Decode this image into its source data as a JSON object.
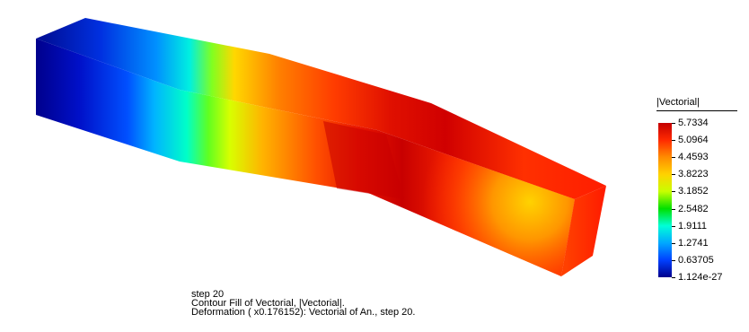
{
  "legend": {
    "title": "|Vectorial|",
    "ticks": [
      "5.7334",
      "5.0964",
      "4.4593",
      "3.8223",
      "3.1852",
      "2.5482",
      "1.9111",
      "1.2741",
      "0.63705",
      "1.124e-27"
    ],
    "colors": [
      "#c40000",
      "#ff2a00",
      "#ff8c00",
      "#ffd200",
      "#c8ff00",
      "#00e000",
      "#00ffd8",
      "#00a8ff",
      "#0040ff",
      "#00008c"
    ]
  },
  "caption": {
    "line1": "step 20",
    "line2": "Contour Fill of Vectorial, |Vectorial|.",
    "line3": "Deformation ( x0.176152): Vectorial of An., step 20."
  }
}
